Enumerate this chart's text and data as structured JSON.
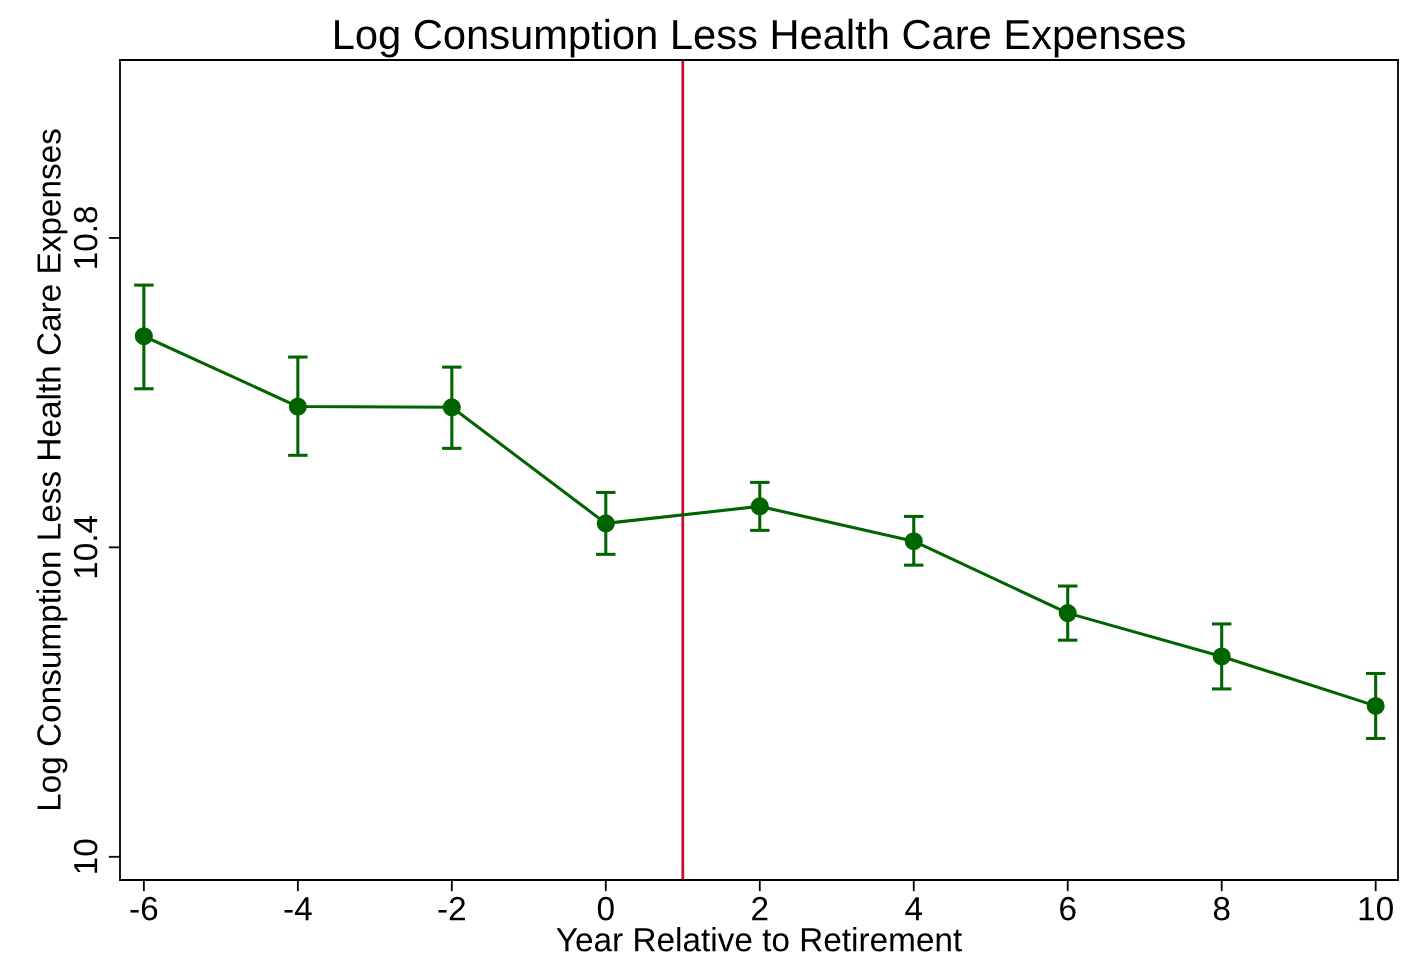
{
  "chart_data": {
    "type": "line",
    "title": "Log Consumption Less Health Care Expenses",
    "xlabel": "Year Relative to Retirement",
    "ylabel": "Log Consumption Less Health Care Expenses",
    "x": [
      -6,
      -4,
      -2,
      0,
      2,
      4,
      6,
      8,
      10
    ],
    "series": [
      {
        "color": "#006400",
        "values": [
          10.673,
          10.582,
          10.581,
          10.431,
          10.453,
          10.408,
          10.315,
          10.259,
          10.195
        ],
        "errors": [
          [
            10.605,
            10.739
          ],
          [
            10.519,
            10.646
          ],
          [
            10.528,
            10.633
          ],
          [
            10.391,
            10.471
          ],
          [
            10.422,
            10.484
          ],
          [
            10.377,
            10.44
          ],
          [
            10.28,
            10.35
          ],
          [
            10.217,
            10.301
          ],
          [
            10.153,
            10.237
          ]
        ]
      }
    ],
    "marker": "circle",
    "line_style": "solid",
    "xlim": [
      -6.31,
      10.29
    ],
    "ylim": [
      9.97,
      11.03
    ],
    "xticks": [
      -6,
      -4,
      -2,
      0,
      2,
      4,
      6,
      8,
      10
    ],
    "yticks": [
      10,
      10.4,
      10.8
    ],
    "ref_lines": [
      {
        "axis": "x",
        "value": 1,
        "color": "#c8102e"
      }
    ],
    "grid": false,
    "legend": false
  }
}
